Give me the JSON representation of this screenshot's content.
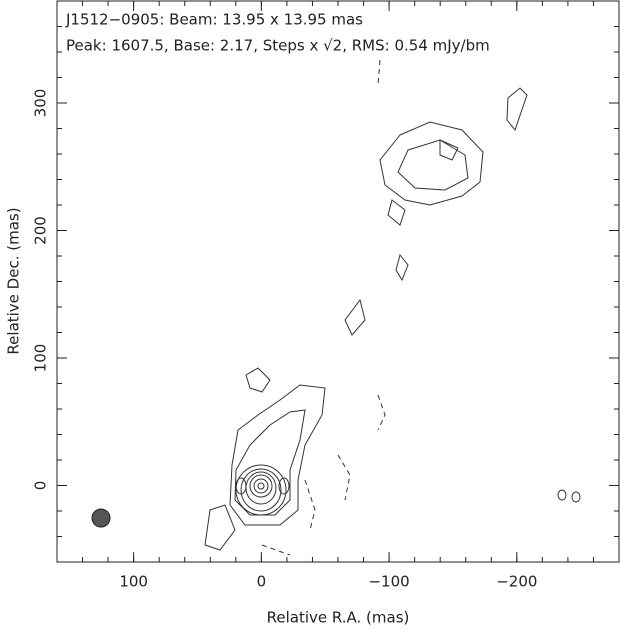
{
  "chart_data": {
    "type": "contour",
    "title_lines": [
      "J1512−0905: Beam: 13.95 x 13.95 mas",
      "Peak: 1607.5, Base: 2.17, Steps x √2, RMS: 0.54 mJy/bm"
    ],
    "x_label": "Relative R.A. (mas)",
    "y_label": "Relative Dec. (mas)",
    "xlim": [
      160,
      -280
    ],
    "ylim": [
      -60,
      380
    ],
    "xticks": [
      100,
      0,
      {
        "value": -100,
        "label": "−100"
      },
      {
        "value": -200,
        "label": "−200"
      }
    ],
    "yticks": [
      0,
      100,
      200,
      300
    ]
  }
}
